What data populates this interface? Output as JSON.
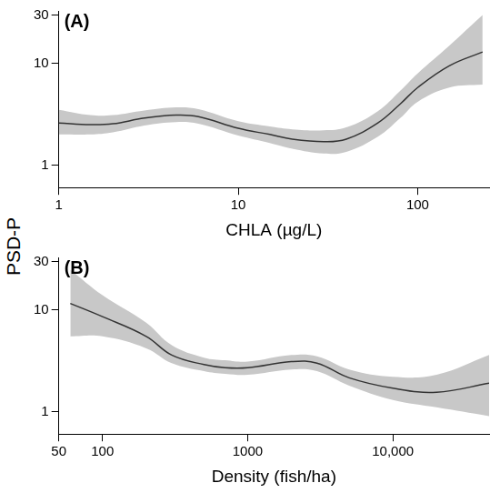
{
  "ylabel": "PSD-P",
  "chart_data": [
    {
      "type": "line",
      "title": "(A)",
      "xlabel": "CHLA (µg/L)",
      "log": true,
      "grid": false,
      "xlim": [
        1,
        250
      ],
      "xticks": [
        1,
        10,
        100
      ],
      "ylim": [
        0.6,
        33
      ],
      "yticks": [
        1,
        10,
        30
      ],
      "x": [
        1,
        1.5,
        2,
        3,
        4.5,
        6,
        10,
        15,
        20,
        30,
        40,
        60,
        80,
        100,
        150,
        230
      ],
      "series": [
        {
          "type": "line",
          "color": "#333333",
          "values": [
            2.6,
            2.5,
            2.55,
            2.9,
            3.1,
            3.0,
            2.3,
            2.0,
            1.8,
            1.7,
            1.8,
            2.6,
            4.0,
            5.8,
            9.5,
            13
          ]
        },
        {
          "type": "area",
          "color": "#c8c8c8",
          "lower": [
            2.0,
            2.0,
            2.1,
            2.45,
            2.65,
            2.55,
            1.95,
            1.65,
            1.45,
            1.3,
            1.35,
            1.9,
            2.9,
            4.2,
            5.8,
            6.2
          ],
          "upper": [
            3.5,
            3.1,
            3.1,
            3.45,
            3.7,
            3.55,
            2.7,
            2.4,
            2.25,
            2.2,
            2.35,
            3.4,
            5.4,
            8.0,
            15,
            30
          ]
        }
      ]
    },
    {
      "type": "line",
      "title": "(B)",
      "xlabel": "Density (fish/ha)",
      "log": true,
      "grid": false,
      "xlim": [
        50,
        46000
      ],
      "xticks": [
        50,
        100,
        1000,
        {
          "value": 10000,
          "label": "10,000"
        }
      ],
      "ylim": [
        0.6,
        33
      ],
      "yticks": [
        1,
        10,
        30
      ],
      "x": [
        60,
        100,
        200,
        300,
        500,
        700,
        1000,
        2000,
        3000,
        5000,
        10000,
        20000,
        46000
      ],
      "series": [
        {
          "type": "line",
          "color": "#333333",
          "values": [
            11.6,
            8.6,
            5.5,
            3.6,
            2.9,
            2.7,
            2.7,
            3.1,
            3.0,
            2.15,
            1.7,
            1.55,
            1.9
          ]
        },
        {
          "type": "area",
          "color": "#c8c8c8",
          "lower": [
            5.5,
            5.5,
            4.2,
            3.0,
            2.5,
            2.35,
            2.3,
            2.6,
            2.5,
            1.8,
            1.3,
            1.1,
            0.9
          ],
          "upper": [
            25,
            14,
            7.5,
            4.5,
            3.4,
            3.2,
            3.1,
            3.6,
            3.5,
            2.6,
            2.2,
            2.3,
            3.6
          ]
        }
      ]
    }
  ]
}
